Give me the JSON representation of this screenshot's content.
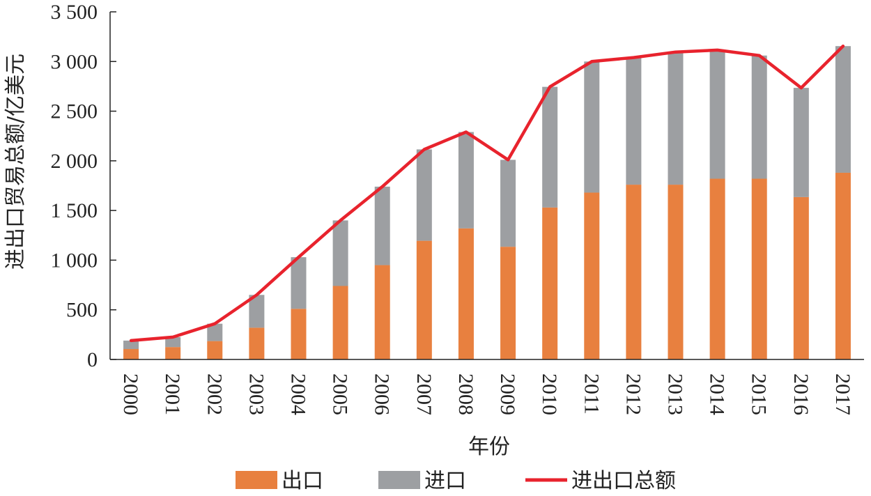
{
  "chart_data": {
    "type": "bar",
    "stacked": true,
    "title": "",
    "xlabel": "年份",
    "ylabel": "进出口贸易总额/亿美元",
    "ylim": [
      0,
      3500
    ],
    "yticks": [
      0,
      500,
      1000,
      1500,
      2000,
      2500,
      3000,
      3500
    ],
    "ytick_labels": [
      "0",
      "500",
      "1 000",
      "1 500",
      "2 000",
      "2 500",
      "3 000",
      "3 500"
    ],
    "categories": [
      "2000",
      "2001",
      "2002",
      "2003",
      "2004",
      "2005",
      "2006",
      "2007",
      "2008",
      "2009",
      "2010",
      "2011",
      "2012",
      "2013",
      "2014",
      "2015",
      "2016",
      "2017"
    ],
    "series": [
      {
        "name": "出口",
        "type": "bar",
        "color": "#E8803F",
        "values": [
          105,
          125,
          185,
          320,
          510,
          740,
          950,
          1195,
          1320,
          1135,
          1530,
          1680,
          1760,
          1760,
          1820,
          1820,
          1635,
          1880
        ]
      },
      {
        "name": "进口",
        "type": "bar",
        "color": "#9D9FA2",
        "values": [
          85,
          100,
          175,
          330,
          520,
          660,
          790,
          920,
          970,
          875,
          1215,
          1320,
          1280,
          1335,
          1295,
          1240,
          1100,
          1275
        ]
      },
      {
        "name": "进出口总额",
        "type": "line",
        "color": "#E8232D",
        "values": [
          190,
          225,
          360,
          650,
          1030,
          1400,
          1740,
          2115,
          2290,
          2010,
          2745,
          3000,
          3040,
          3095,
          3115,
          3060,
          2735,
          3155
        ]
      }
    ],
    "legend": {
      "position": "bottom",
      "entries": [
        "出口",
        "进口",
        "进出口总额"
      ]
    }
  }
}
